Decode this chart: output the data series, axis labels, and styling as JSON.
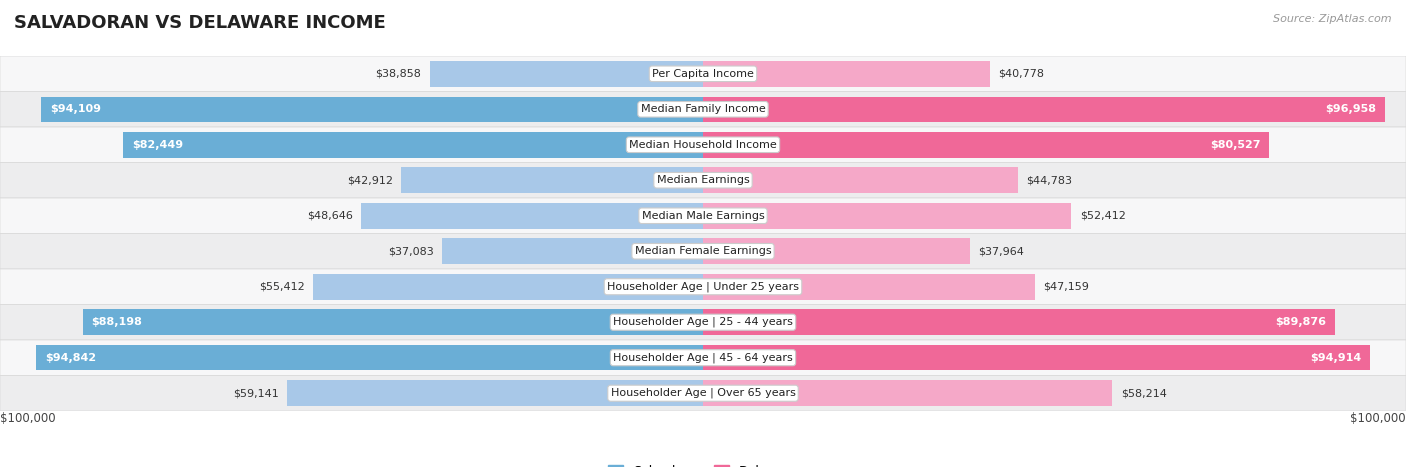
{
  "title": "SALVADORAN VS DELAWARE INCOME",
  "source": "Source: ZipAtlas.com",
  "categories": [
    "Per Capita Income",
    "Median Family Income",
    "Median Household Income",
    "Median Earnings",
    "Median Male Earnings",
    "Median Female Earnings",
    "Householder Age | Under 25 years",
    "Householder Age | 25 - 44 years",
    "Householder Age | 45 - 64 years",
    "Householder Age | Over 65 years"
  ],
  "salvadoran_values": [
    38858,
    94109,
    82449,
    42912,
    48646,
    37083,
    55412,
    88198,
    94842,
    59141
  ],
  "delaware_values": [
    40778,
    96958,
    80527,
    44783,
    52412,
    37964,
    47159,
    89876,
    94914,
    58214
  ],
  "salvadoran_labels": [
    "$38,858",
    "$94,109",
    "$82,449",
    "$42,912",
    "$48,646",
    "$37,083",
    "$55,412",
    "$88,198",
    "$94,842",
    "$59,141"
  ],
  "delaware_labels": [
    "$40,778",
    "$96,958",
    "$80,527",
    "$44,783",
    "$52,412",
    "$37,964",
    "$47,159",
    "$89,876",
    "$94,914",
    "$58,214"
  ],
  "max_value": 100000,
  "salvadoran_color_light": "#a8c8e8",
  "salvadoran_color_dark": "#6aaed6",
  "delaware_color_light": "#f5a8c8",
  "delaware_color_dark": "#f06898",
  "row_light": "#f7f7f8",
  "row_dark": "#ededee",
  "row_border": "#d8d8d8",
  "background_color": "#ffffff",
  "bar_height": 0.72,
  "threshold": 60000,
  "xlabel": "$100,000",
  "legend_salvadoran": "Salvadoran",
  "legend_delaware": "Delaware",
  "title_fontsize": 13,
  "label_fontsize": 8,
  "cat_fontsize": 8
}
